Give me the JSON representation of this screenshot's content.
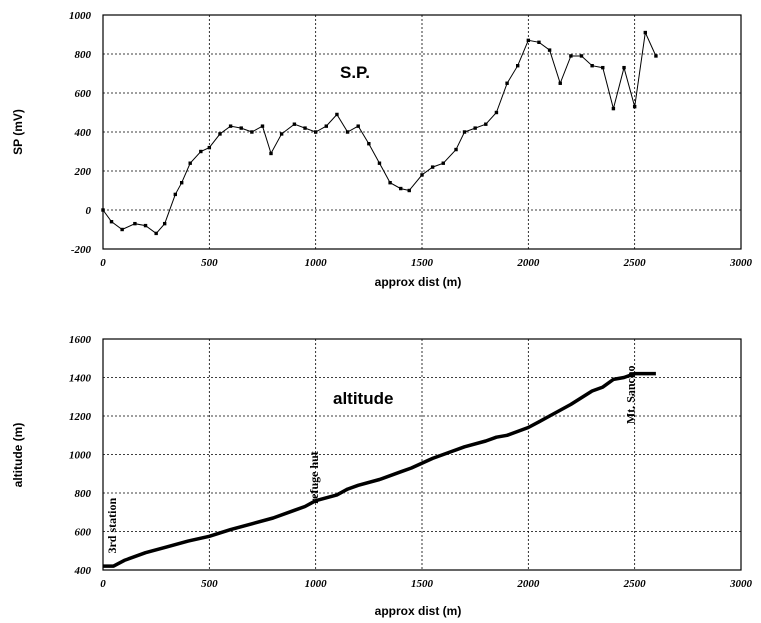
{
  "chart_data": [
    {
      "type": "line",
      "inner_label": "S.P.",
      "xlabel": "approx dist (m)",
      "ylabel": "SP (mV)",
      "xlim": [
        0,
        3000
      ],
      "ylim": [
        -200,
        1000
      ],
      "xticks": [
        0,
        500,
        1000,
        1500,
        2000,
        2500,
        3000
      ],
      "yticks": [
        -200,
        0,
        200,
        400,
        600,
        800,
        1000
      ],
      "grid": true,
      "markers": true,
      "series": [
        {
          "x": [
            0,
            40,
            90,
            150,
            200,
            250,
            290,
            340,
            370,
            410,
            460,
            500,
            550,
            600,
            650,
            700,
            750,
            790,
            840,
            900,
            950,
            1000,
            1050,
            1100,
            1150,
            1200,
            1250,
            1300,
            1350,
            1400,
            1440,
            1500,
            1550,
            1600,
            1660,
            1700,
            1750,
            1800,
            1850,
            1900,
            1950,
            2000,
            2050,
            2100,
            2150,
            2200,
            2250,
            2300,
            2350,
            2400,
            2450,
            2500,
            2550,
            2600
          ],
          "y": [
            0,
            -60,
            -100,
            -70,
            -80,
            -120,
            -70,
            80,
            140,
            240,
            300,
            320,
            390,
            430,
            420,
            400,
            430,
            290,
            390,
            440,
            420,
            400,
            430,
            490,
            400,
            430,
            340,
            240,
            140,
            110,
            100,
            180,
            220,
            240,
            310,
            400,
            420,
            440,
            500,
            650,
            740,
            870,
            860,
            820,
            650,
            790,
            790,
            740,
            730,
            520,
            730,
            530,
            910,
            790
          ]
        }
      ]
    },
    {
      "type": "line",
      "inner_label": "altitude",
      "xlabel": "approx dist (m)",
      "ylabel": "altitude (m)",
      "xlim": [
        0,
        3000
      ],
      "ylim": [
        400,
        1600
      ],
      "xticks": [
        0,
        500,
        1000,
        1500,
        2000,
        2500,
        3000
      ],
      "yticks": [
        400,
        600,
        800,
        1000,
        1200,
        1400,
        1600
      ],
      "grid": true,
      "markers": false,
      "annotations": [
        {
          "text": "3rd station",
          "x": 60,
          "y": 630
        },
        {
          "text": "refuge hut",
          "x": 1010,
          "y": 880
        },
        {
          "text": "Mt. Sancho",
          "x": 2500,
          "y": 1310
        }
      ],
      "series": [
        {
          "x": [
            0,
            50,
            100,
            200,
            300,
            400,
            500,
            600,
            700,
            800,
            900,
            950,
            1000,
            1100,
            1150,
            1200,
            1300,
            1400,
            1450,
            1550,
            1600,
            1700,
            1800,
            1850,
            1900,
            2000,
            2050,
            2100,
            2200,
            2300,
            2350,
            2400,
            2450,
            2500,
            2550,
            2600
          ],
          "y": [
            420,
            420,
            450,
            490,
            520,
            550,
            575,
            610,
            640,
            670,
            710,
            730,
            760,
            790,
            820,
            840,
            870,
            910,
            930,
            980,
            1000,
            1040,
            1070,
            1090,
            1100,
            1140,
            1170,
            1200,
            1260,
            1330,
            1350,
            1390,
            1400,
            1420,
            1420,
            1420
          ]
        }
      ]
    }
  ]
}
